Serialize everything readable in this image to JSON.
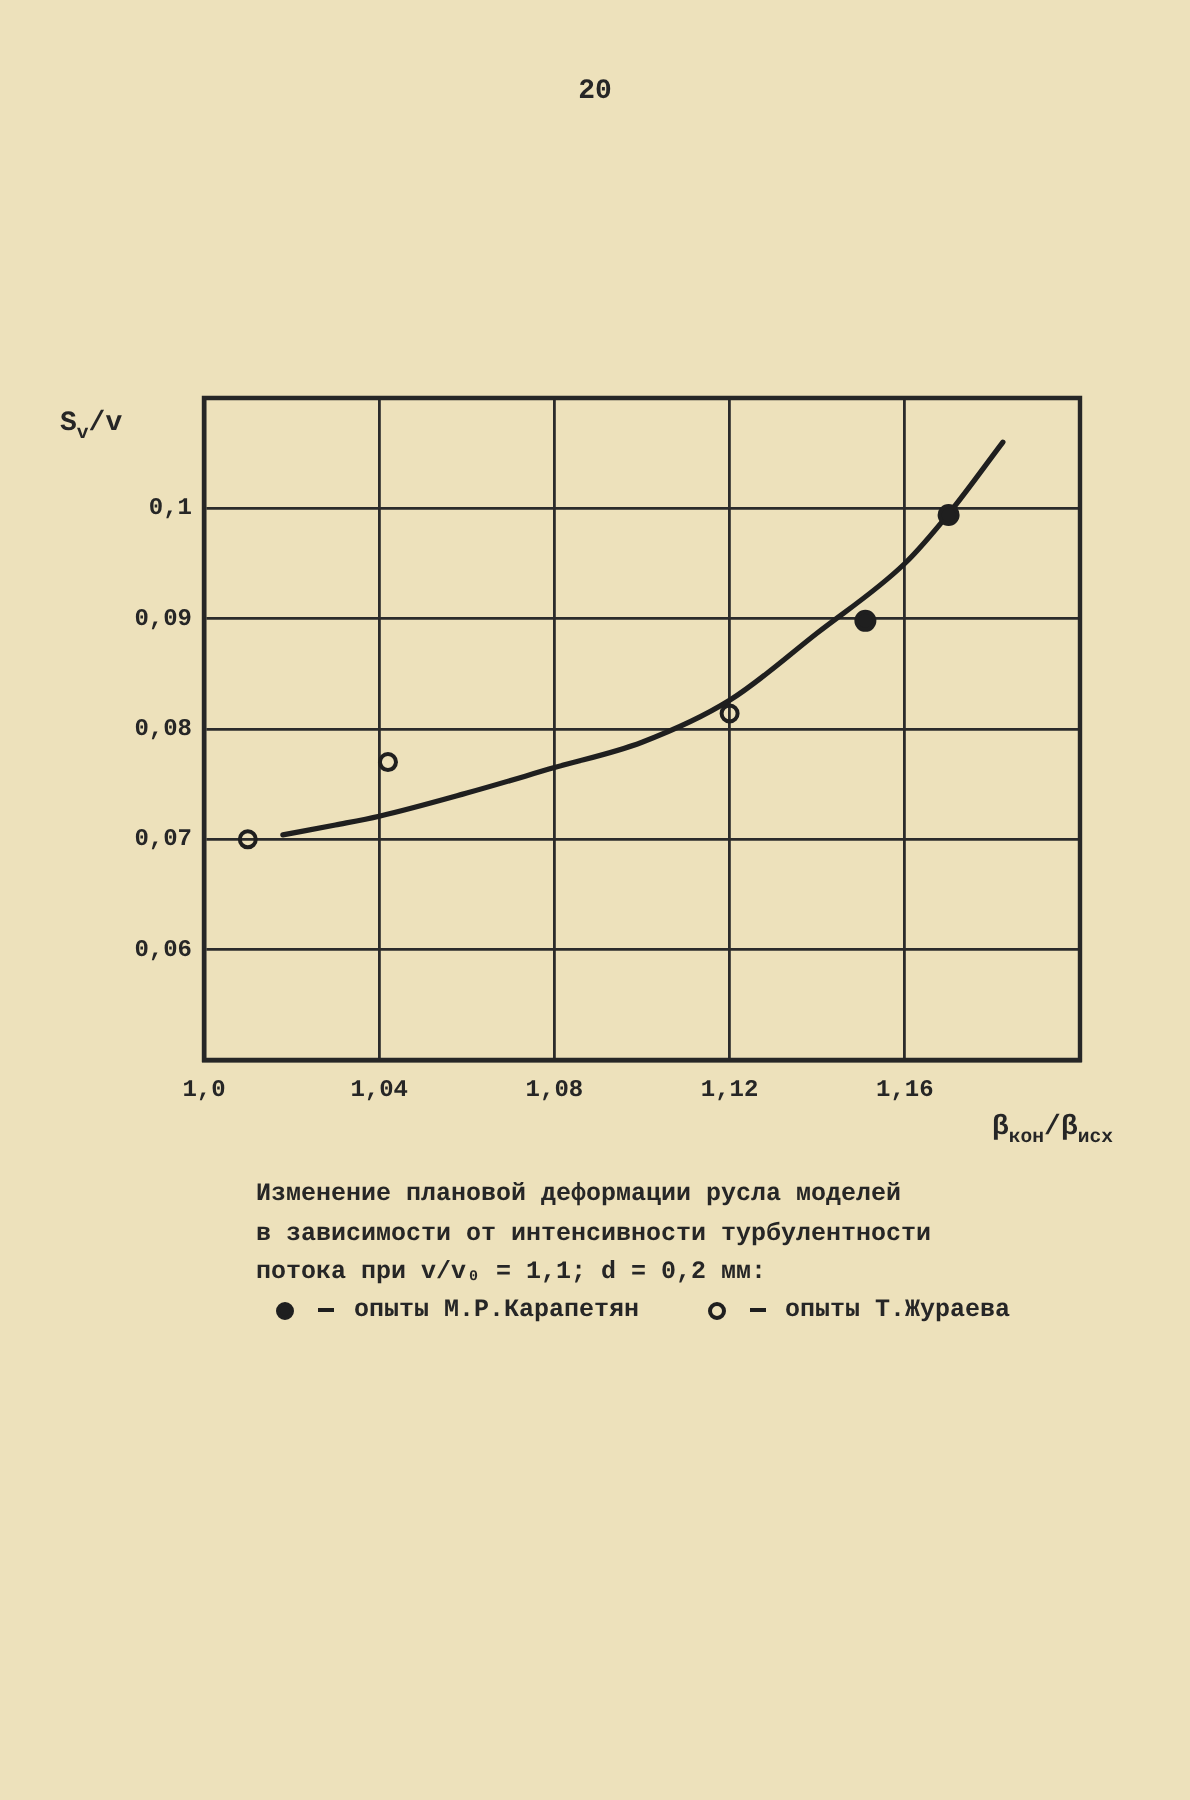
{
  "chart_data": {
    "type": "line",
    "title": "Изменение плановой деформации русла моделей\nв зависимости от интенсивности турбулентности\nпотока при v/v₀ = 1,1; d = 0,2 мм:",
    "xlabel": "β$_{кон}$/β$_{исх}$",
    "ylabel": "S$_{v}$/v",
    "annotations": [
      "20"
    ],
    "xlim": [
      1.0,
      1.2
    ],
    "xticks": [
      {
        "value": 1.0,
        "label": "1,0"
      },
      {
        "value": 1.04,
        "label": "1,04"
      },
      {
        "value": 1.08,
        "label": "1,08"
      },
      {
        "value": 1.12,
        "label": "1,12"
      },
      {
        "value": 1.16,
        "label": "1,16"
      }
    ],
    "ylim": [
      0.05,
      0.11
    ],
    "yticks": [
      {
        "value": 0.06,
        "label": "0,06"
      },
      {
        "value": 0.07,
        "label": "0,07"
      },
      {
        "value": 0.08,
        "label": "0,08"
      },
      {
        "value": 0.09,
        "label": "0,09"
      },
      {
        "value": 0.1,
        "label": "0,1"
      }
    ],
    "grid": true,
    "legend": "bottom",
    "series": [
      {
        "color": "#1f1f1f",
        "marker": "none",
        "x": [
          1.018,
          1.03,
          1.04,
          1.06,
          1.08,
          1.1,
          1.12,
          1.14,
          1.16,
          1.17,
          1.1824
        ],
        "values": [
          0.0704,
          0.0713,
          0.0721,
          0.0742,
          0.0765,
          0.0788,
          0.0826,
          0.0887,
          0.095,
          0.0995,
          0.106
        ]
      },
      {
        "type": "scatter",
        "name": "опыты М.Р.Карапетян",
        "color": "#1f1f1f",
        "marker": "circle",
        "x": [
          1.151,
          1.17
        ],
        "values": [
          0.0898,
          0.0994
        ]
      },
      {
        "type": "scatter",
        "name": "опыты Т.Жураева",
        "color": "#1f1f1f",
        "marker": "circle-open",
        "x": [
          1.01,
          1.042,
          1.12
        ],
        "values": [
          0.07,
          0.077,
          0.0814
        ]
      }
    ]
  }
}
